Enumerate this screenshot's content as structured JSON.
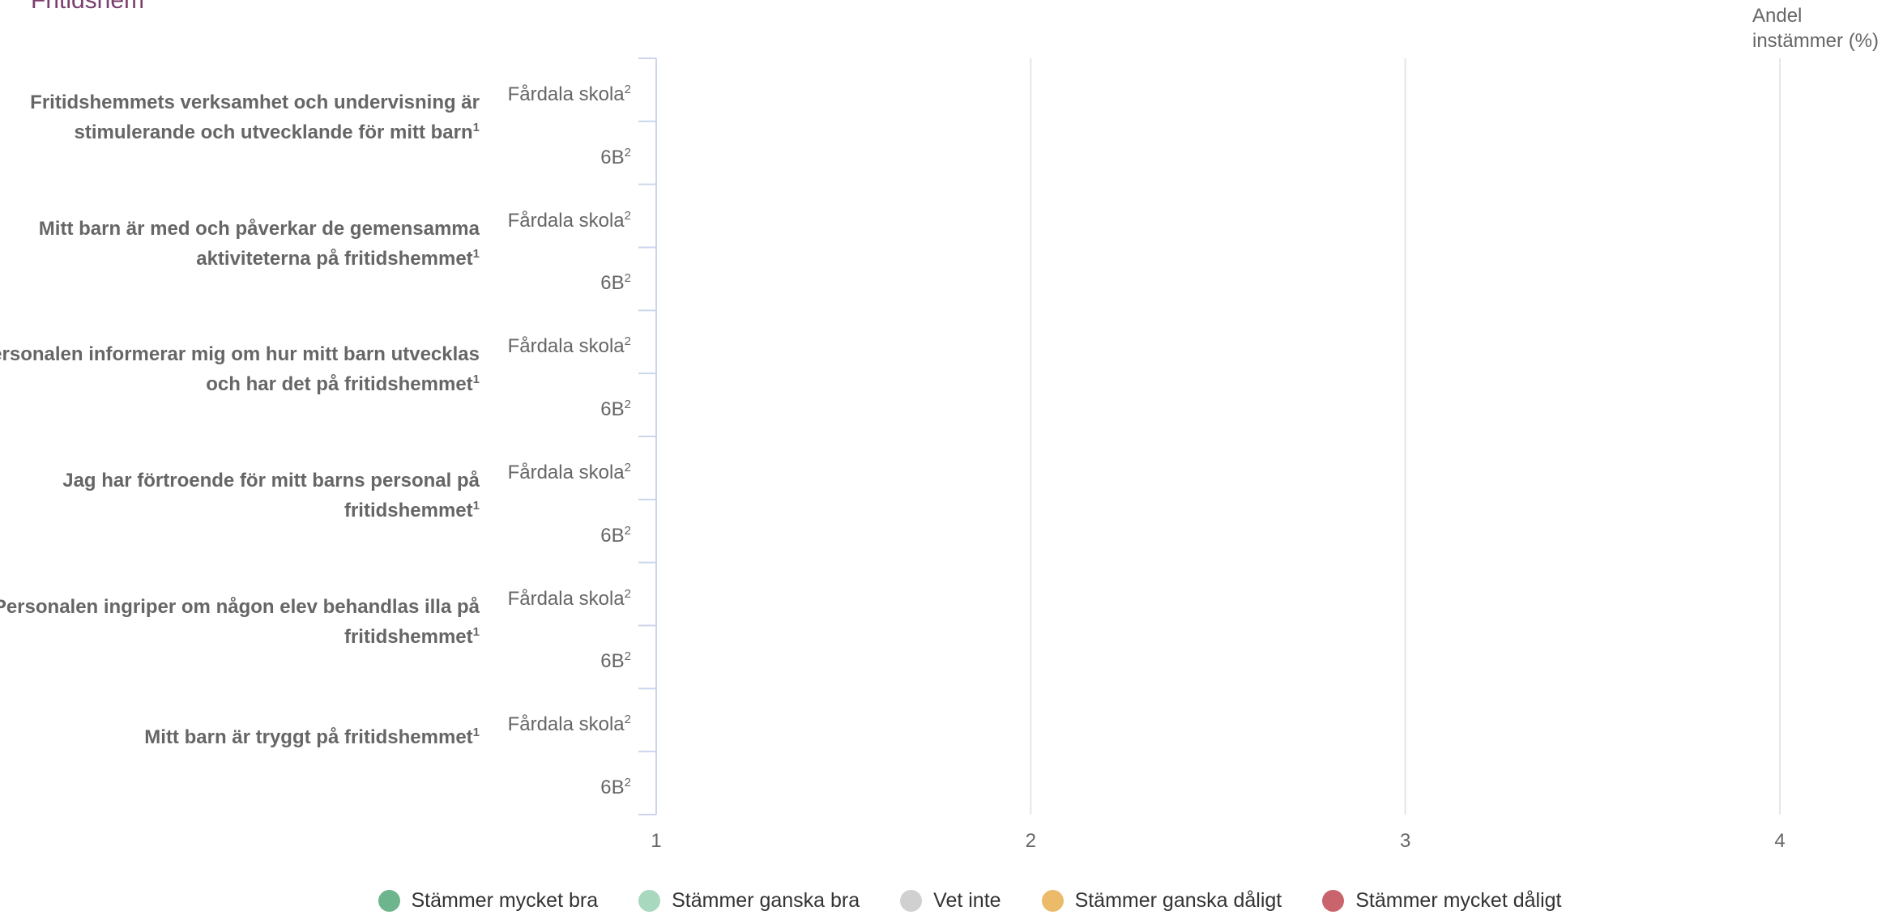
{
  "page": {
    "title": "Fritidshem"
  },
  "chart_data": {
    "type": "bar",
    "orientation": "horizontal",
    "y_axis_title": "Andel instämmer (%)",
    "x_ticks": [
      "1",
      "2",
      "3",
      "4"
    ],
    "xlim": [
      1,
      4
    ],
    "grid": true,
    "questions": [
      {
        "label": "Fritidshemmets verksamhet  och undervisning är stimulerande och utvecklande för mitt barn",
        "sup": "1",
        "groups": [
          {
            "name": "Fårdala skola",
            "sup": "2",
            "values": []
          },
          {
            "name": "6B",
            "sup": "2",
            "values": []
          }
        ]
      },
      {
        "label": "Mitt barn är med och påverkar de gemensamma aktiviteterna på fritidshemmet",
        "sup": "1",
        "groups": [
          {
            "name": "Fårdala skola",
            "sup": "2",
            "values": []
          },
          {
            "name": "6B",
            "sup": "2",
            "values": []
          }
        ]
      },
      {
        "label": "Personalen informerar mig om hur mitt barn utvecklas och har det på fritidshemmet",
        "sup": "1",
        "groups": [
          {
            "name": "Fårdala skola",
            "sup": "2",
            "values": []
          },
          {
            "name": "6B",
            "sup": "2",
            "values": []
          }
        ]
      },
      {
        "label": "Jag har förtroende för mitt barns personal på fritidshemmet",
        "sup": "1",
        "groups": [
          {
            "name": "Fårdala skola",
            "sup": "2",
            "values": []
          },
          {
            "name": "6B",
            "sup": "2",
            "values": []
          }
        ]
      },
      {
        "label": "Personalen ingriper om någon elev behandlas illa på fritidshemmet",
        "sup": "1",
        "groups": [
          {
            "name": "Fårdala skola",
            "sup": "2",
            "values": []
          },
          {
            "name": "6B",
            "sup": "2",
            "values": []
          }
        ]
      },
      {
        "label": "Mitt barn är tryggt på fritidshemmet",
        "sup": "1",
        "groups": [
          {
            "name": "Fårdala skola",
            "sup": "2",
            "values": []
          },
          {
            "name": "6B",
            "sup": "2",
            "values": []
          }
        ]
      }
    ],
    "legend": [
      {
        "name": "Stämmer mycket bra",
        "color": "#6db58d"
      },
      {
        "name": "Stämmer ganska bra",
        "color": "#a8d8bd"
      },
      {
        "name": "Vet inte",
        "color": "#d0d0d0"
      },
      {
        "name": "Stämmer ganska dåligt",
        "color": "#ebbb6a"
      },
      {
        "name": "Stämmer mycket dåligt",
        "color": "#c9636c"
      }
    ],
    "legend_position": "bottom",
    "colors": {
      "grid": "#e6e6e6",
      "axis": "#ccd6eb",
      "title": "#7b3f6e"
    }
  }
}
